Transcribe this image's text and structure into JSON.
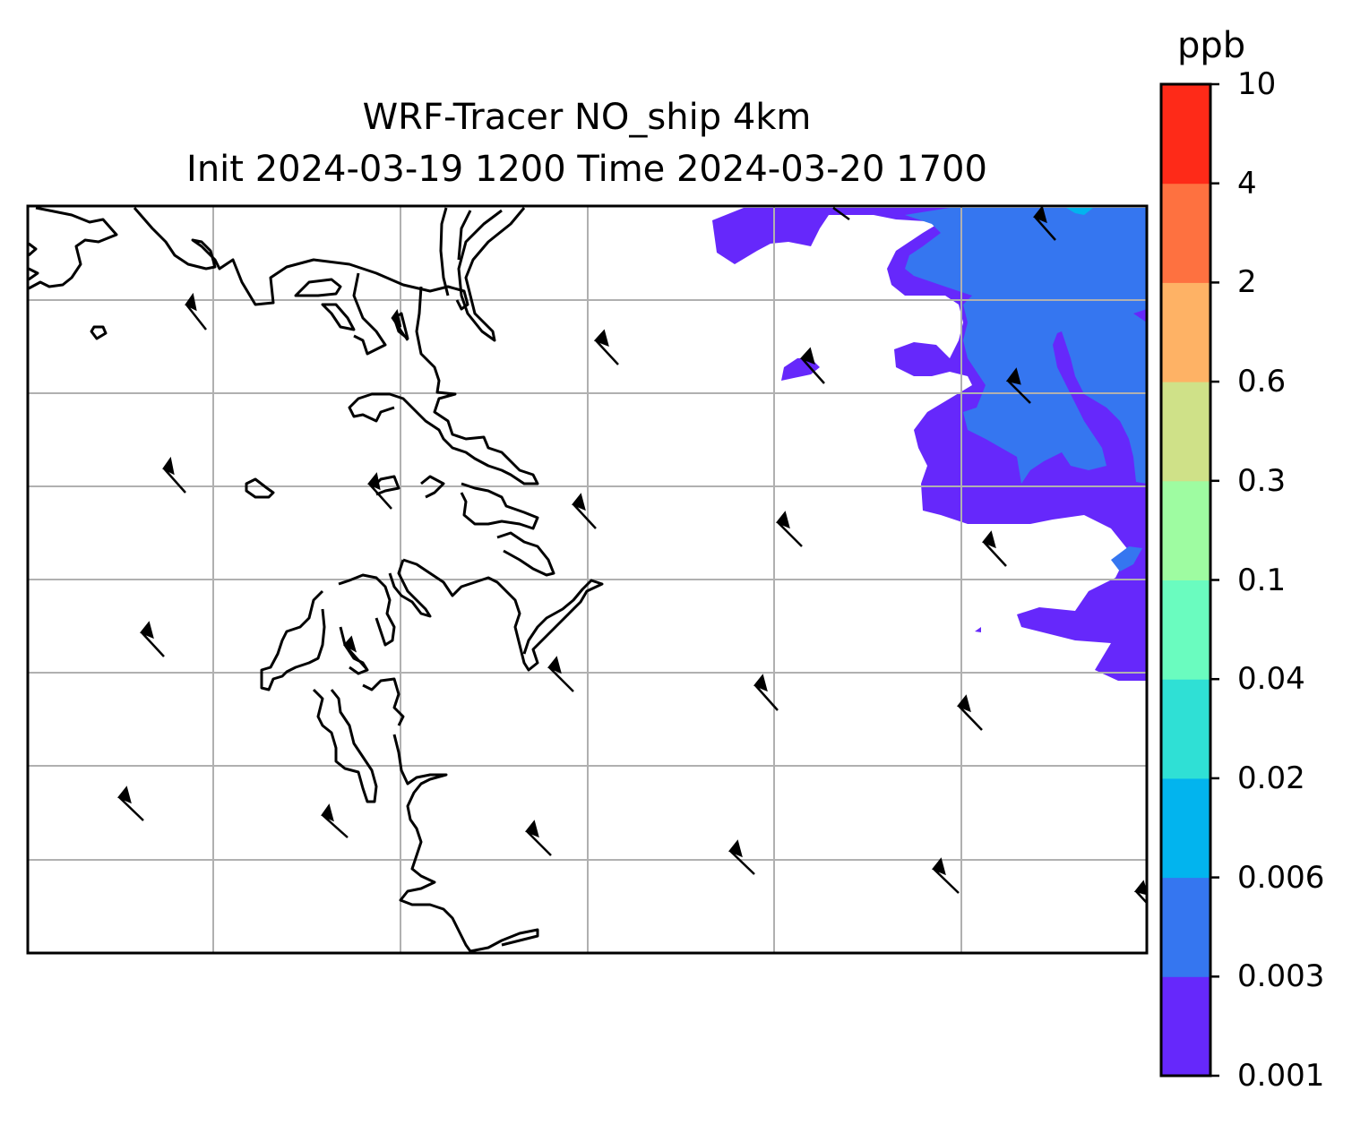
{
  "title": "WRF-Tracer NO_ship 4km",
  "subtitle": "Init 2024-03-19 1200 Time 2024-03-20 1700",
  "colorbar": {
    "unit": "ppb",
    "levels": [
      "0.001",
      "0.003",
      "0.006",
      "0.02",
      "0.04",
      "0.1",
      "0.3",
      "0.6",
      "2",
      "4",
      "10"
    ],
    "colors": [
      "#6628fb",
      "#3576f0",
      "#02b4ee",
      "#2fe0d5",
      "#6afcbf",
      "#9efca1",
      "#cfe188",
      "#feb265",
      "#fe7140",
      "#fe2a18"
    ]
  },
  "map": {
    "grid": true,
    "grid_color": "#b0b0b0",
    "coastline_color": "#000000",
    "wind_barbs": true
  }
}
